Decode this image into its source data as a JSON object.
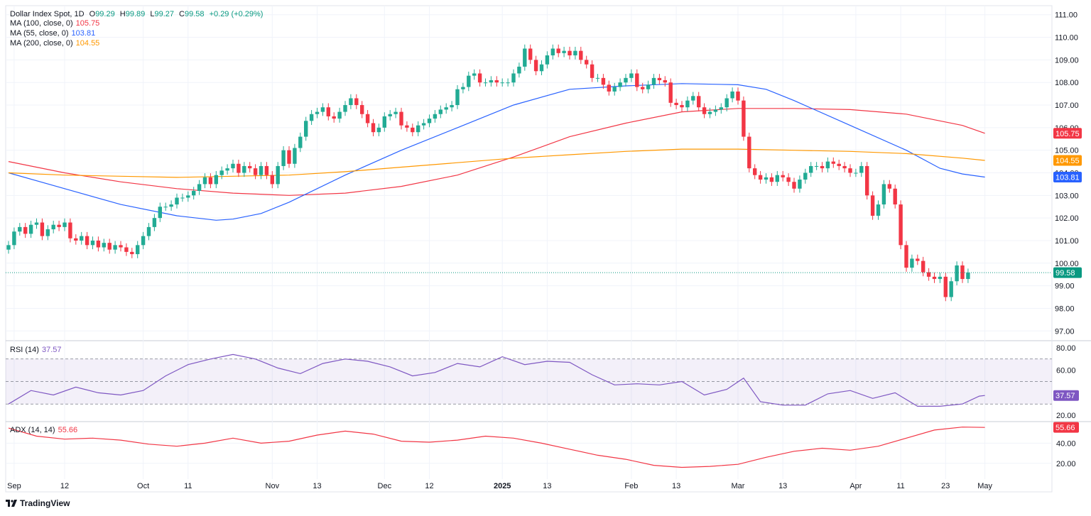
{
  "header": {
    "symbol": "Dollar Index Spot, 1D",
    "open_label": "O",
    "open": "99.29",
    "high_label": "H",
    "high": "99.89",
    "low_label": "L",
    "low": "99.27",
    "close_label": "C",
    "close": "99.58",
    "change": "+0.29 (+0.29%)"
  },
  "legend": {
    "ma100_label": "MA (100, close, 0)",
    "ma100_value": "105.75",
    "ma55_label": "MA (55, close, 0)",
    "ma55_value": "103.81",
    "ma200_label": "MA (200, close, 0)",
    "ma200_value": "104.55",
    "rsi_label": "RSI (14)",
    "rsi_value": "37.57",
    "adx_label": "ADX (14, 14)",
    "adx_value": "55.66"
  },
  "colors": {
    "up": "#22ab94",
    "down": "#f23645",
    "ma100": "#f23645",
    "ma55": "#2962ff",
    "ma200": "#ff9800",
    "rsi": "#7e57c2",
    "adx": "#f23645",
    "last_price": "#089981"
  },
  "footer": {
    "brand": "TradingView"
  },
  "chart_data": {
    "type": "candlestick",
    "title": "Dollar Index Spot, 1D",
    "x_labels": [
      {
        "label": "Sep",
        "idx": 1
      },
      {
        "label": "12",
        "idx": 10
      },
      {
        "label": "Oct",
        "idx": 24
      },
      {
        "label": "11",
        "idx": 32
      },
      {
        "label": "Nov",
        "idx": 47
      },
      {
        "label": "13",
        "idx": 55
      },
      {
        "label": "Dec",
        "idx": 67
      },
      {
        "label": "12",
        "idx": 75
      },
      {
        "label": "2025",
        "idx": 88
      },
      {
        "label": "13",
        "idx": 96
      },
      {
        "label": "Feb",
        "idx": 111
      },
      {
        "label": "13",
        "idx": 119
      },
      {
        "label": "Mar",
        "idx": 130
      },
      {
        "label": "13",
        "idx": 138
      },
      {
        "label": "Apr",
        "idx": 151
      },
      {
        "label": "11",
        "idx": 159
      },
      {
        "label": "23",
        "idx": 167
      },
      {
        "label": "May",
        "idx": 174
      }
    ],
    "price_axis": {
      "min": 96.6,
      "max": 111.4,
      "ticks": [
        97.0,
        98.0,
        99.0,
        100.0,
        101.0,
        102.0,
        103.0,
        104.0,
        105.0,
        106.0,
        107.0,
        108.0,
        109.0,
        110.0,
        111.0
      ]
    },
    "closes": [
      100.8,
      101.4,
      101.6,
      101.3,
      101.7,
      101.8,
      101.2,
      101.5,
      101.7,
      101.6,
      101.8,
      101.1,
      101.0,
      101.2,
      100.8,
      101.0,
      100.7,
      100.9,
      100.6,
      100.8,
      100.7,
      100.5,
      100.4,
      100.8,
      101.2,
      101.6,
      102.0,
      102.5,
      102.5,
      102.6,
      102.9,
      102.9,
      103.0,
      103.2,
      103.5,
      103.8,
      103.5,
      103.9,
      104.1,
      104.2,
      104.4,
      104.0,
      104.3,
      104.2,
      103.9,
      104.3,
      103.9,
      103.5,
      104.3,
      105.0,
      104.4,
      105.1,
      105.6,
      106.3,
      106.6,
      106.7,
      106.9,
      106.5,
      106.4,
      106.7,
      107.0,
      107.3,
      107.0,
      106.6,
      106.2,
      105.8,
      106.0,
      106.5,
      106.6,
      106.7,
      106.1,
      106.0,
      105.8,
      106.1,
      106.2,
      106.4,
      106.6,
      106.8,
      106.9,
      107.0,
      107.7,
      107.8,
      108.3,
      108.4,
      108.0,
      108.0,
      108.1,
      108.0,
      108.0,
      108.0,
      108.4,
      108.7,
      109.5,
      109.0,
      108.5,
      108.8,
      109.2,
      109.5,
      109.3,
      109.4,
      109.2,
      109.4,
      109.0,
      108.8,
      108.2,
      108.2,
      107.9,
      107.6,
      107.8,
      108.0,
      108.2,
      108.4,
      107.8,
      107.7,
      107.9,
      108.2,
      108.1,
      108.0,
      107.1,
      107.0,
      106.9,
      107.2,
      107.4,
      106.9,
      106.6,
      106.7,
      106.8,
      106.9,
      107.3,
      107.6,
      107.2,
      105.6,
      104.2,
      103.9,
      103.7,
      103.8,
      103.6,
      103.9,
      103.8,
      103.6,
      103.3,
      103.7,
      104.0,
      104.3,
      104.3,
      104.2,
      104.5,
      104.4,
      104.3,
      104.2,
      104.0,
      104.0,
      104.3,
      103.0,
      102.1,
      102.6,
      103.5,
      103.3,
      102.6,
      100.8,
      99.8,
      100.2,
      100.1,
      99.6,
      99.4,
      99.3,
      99.4,
      98.5,
      99.2,
      99.9,
      99.3,
      99.58
    ],
    "ohlc_last": {
      "open": 99.29,
      "high": 99.89,
      "low": 99.27,
      "close": 99.58,
      "change": 0.29,
      "change_pct": 0.29
    },
    "series": [
      {
        "name": "MA (100, close, 0)",
        "last": 105.75,
        "x_idx": [
          0,
          10,
          20,
          30,
          40,
          50,
          60,
          70,
          80,
          90,
          100,
          110,
          120,
          130,
          140,
          150,
          160,
          170,
          174
        ],
        "values": [
          104.5,
          104.0,
          103.6,
          103.3,
          103.1,
          103.0,
          103.1,
          103.4,
          103.9,
          104.7,
          105.6,
          106.2,
          106.7,
          106.85,
          106.85,
          106.8,
          106.6,
          106.1,
          105.75
        ]
      },
      {
        "name": "MA (55, close, 0)",
        "last": 103.81,
        "x_idx": [
          0,
          10,
          20,
          30,
          37,
          40,
          45,
          50,
          60,
          70,
          80,
          90,
          100,
          110,
          120,
          130,
          135,
          140,
          150,
          160,
          166,
          170,
          174
        ],
        "values": [
          104.0,
          103.3,
          102.6,
          102.1,
          101.9,
          101.95,
          102.2,
          102.7,
          103.9,
          105.0,
          106.0,
          107.0,
          107.7,
          107.85,
          107.95,
          107.9,
          107.7,
          107.2,
          106.1,
          105.0,
          104.2,
          103.95,
          103.81
        ]
      },
      {
        "name": "MA (200, close, 0)",
        "last": 104.55,
        "x_idx": [
          0,
          10,
          20,
          30,
          40,
          50,
          60,
          70,
          80,
          90,
          100,
          110,
          120,
          130,
          140,
          150,
          160,
          170,
          174
        ],
        "values": [
          104.0,
          103.9,
          103.85,
          103.8,
          103.85,
          103.9,
          104.05,
          104.25,
          104.45,
          104.65,
          104.8,
          104.95,
          105.05,
          105.05,
          105.0,
          104.95,
          104.85,
          104.65,
          104.55
        ]
      }
    ],
    "rsi": {
      "name": "RSI (14)",
      "last": 37.57,
      "ylim": [
        15,
        85
      ],
      "ticks": [
        20.0,
        40.0,
        60.0,
        80.0
      ],
      "band": [
        30,
        70
      ],
      "mid": 50,
      "x_idx": [
        0,
        4,
        8,
        12,
        16,
        20,
        24,
        28,
        32,
        36,
        40,
        44,
        48,
        52,
        56,
        60,
        64,
        68,
        72,
        76,
        80,
        84,
        88,
        92,
        96,
        100,
        104,
        108,
        112,
        116,
        120,
        124,
        128,
        131,
        134,
        138,
        142,
        146,
        150,
        154,
        158,
        162,
        166,
        170,
        173,
        174
      ],
      "values": [
        30,
        42,
        38,
        45,
        40,
        38,
        42,
        55,
        65,
        70,
        74,
        70,
        62,
        57,
        66,
        70,
        68,
        63,
        55,
        58,
        66,
        63,
        72,
        65,
        68,
        67,
        56,
        47,
        48,
        47,
        50,
        38,
        43,
        53,
        32,
        29,
        29,
        39,
        42,
        35,
        40,
        28,
        28,
        30,
        37,
        37.57
      ]
    },
    "adx": {
      "name": "ADX (14, 14)",
      "last": 55.66,
      "ylim": [
        10,
        60
      ],
      "ticks": [
        20.0,
        40.0
      ],
      "x_idx": [
        0,
        5,
        10,
        15,
        20,
        25,
        30,
        35,
        40,
        45,
        50,
        55,
        60,
        65,
        70,
        75,
        80,
        85,
        90,
        95,
        100,
        105,
        110,
        115,
        120,
        125,
        130,
        135,
        140,
        145,
        150,
        155,
        160,
        165,
        170,
        174
      ],
      "values": [
        55,
        47,
        44,
        45,
        43,
        39,
        37,
        40,
        45,
        40,
        42,
        48,
        52,
        49,
        42,
        41,
        43,
        47,
        45,
        40,
        34,
        28,
        24,
        18,
        16,
        17,
        19,
        26,
        32,
        35,
        33,
        37,
        45,
        53,
        56,
        55.66
      ]
    }
  }
}
